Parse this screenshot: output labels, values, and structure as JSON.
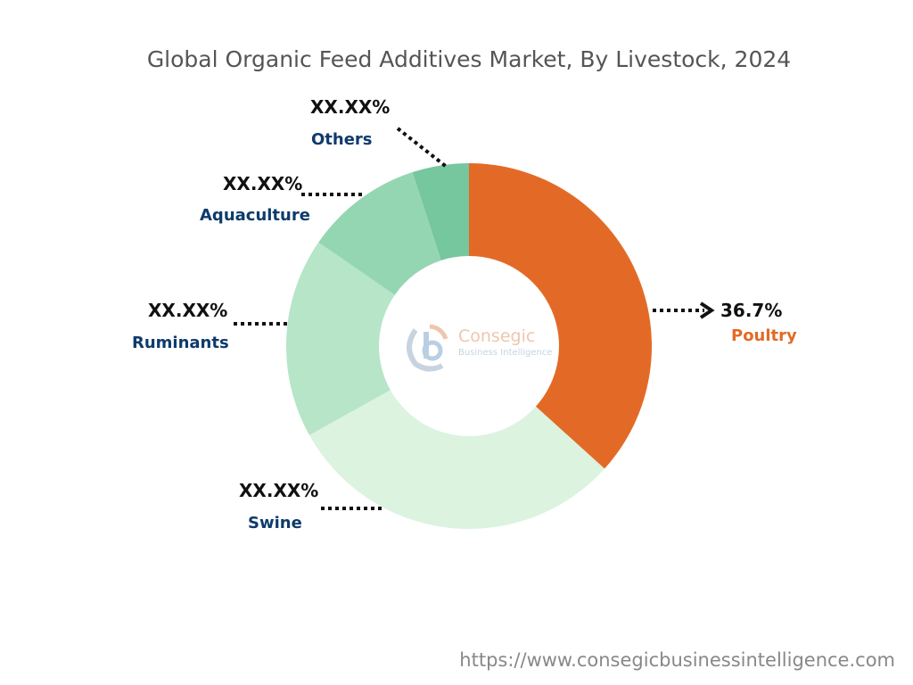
{
  "chart_data": {
    "type": "pie",
    "donut": true,
    "title": "Global Organic Feed Additives Market, By Livestock, 2024",
    "categories": [
      "Poultry",
      "Swine",
      "Ruminants",
      "Aquaculture",
      "Others"
    ],
    "values": [
      36.7,
      30.2,
      17.7,
      10.4,
      5.0
    ],
    "value_labels": [
      "36.7%",
      "XX.XX%",
      "XX.XX%",
      "XX.XX%",
      "XX.XX%"
    ],
    "colors": [
      "#e36a26",
      "#dbf3df",
      "#b6e5c8",
      "#95d6b2",
      "#76c69e"
    ],
    "legend": "none"
  },
  "logo": {
    "brand": "Consegic",
    "sub": "Business Intelligence"
  },
  "footer_url": "https://www.consegicbusinessintelligence.com"
}
